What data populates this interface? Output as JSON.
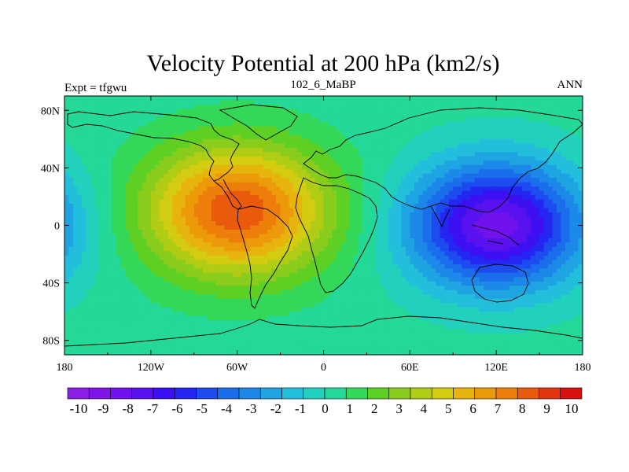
{
  "chart_data": {
    "type": "heatmap",
    "title": "Velocity Potential at 200 hPa (km2/s)",
    "subtitle_left": "Expt = tfgwu",
    "subtitle_center": "102_6_MaBP",
    "subtitle_right": "ANN",
    "x_ticks": [
      "180",
      "120W",
      "60W",
      "0",
      "60E",
      "120E",
      "180"
    ],
    "x_tick_values": [
      -180,
      -120,
      -60,
      0,
      60,
      120,
      180
    ],
    "y_ticks": [
      "80N",
      "40N",
      "0",
      "40S",
      "80S"
    ],
    "y_tick_values": [
      80,
      40,
      0,
      -40,
      -80
    ],
    "xlim": [
      -180,
      180
    ],
    "ylim": [
      -90,
      90
    ],
    "colorbar_labels": [
      "-10",
      "-9",
      "-8",
      "-7",
      "-6",
      "-5",
      "-4",
      "-3",
      "-2",
      "-1",
      "0",
      "1",
      "2",
      "3",
      "4",
      "5",
      "6",
      "7",
      "8",
      "9",
      "10"
    ],
    "colorbar_values": [
      -10,
      -9,
      -8,
      -7,
      -6,
      -5,
      -4,
      -3,
      -2,
      -1,
      0,
      1,
      2,
      3,
      4,
      5,
      6,
      7,
      8,
      9,
      10
    ],
    "colorbar_colors": [
      "#8B1FE6",
      "#7F14EA",
      "#7112EE",
      "#5A11F0",
      "#3C10F2",
      "#2426F2",
      "#1C4CF0",
      "#1A6EEC",
      "#1C88E8",
      "#1FA4E2",
      "#22BEDB",
      "#22D0BE",
      "#24D898",
      "#34D858",
      "#5ED024",
      "#8ACC1C",
      "#B0CC14",
      "#D4CC10",
      "#E6B40C",
      "#EC9A0A",
      "#EE7E0A",
      "#EA5A0C",
      "#E2360E",
      "#D81010"
    ],
    "features": [
      {
        "name": "positive-center",
        "lon": -60,
        "lat": 10,
        "peak": 8.6
      },
      {
        "name": "negative-center",
        "lon": 120,
        "lat": 0,
        "peak": -9.2
      }
    ]
  }
}
